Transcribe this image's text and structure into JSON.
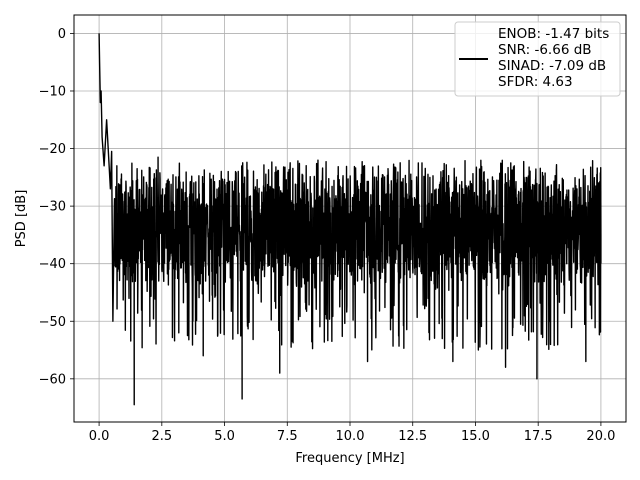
{
  "chart_data": {
    "type": "line",
    "title": "",
    "xlabel": "Frequency [MHz]",
    "ylabel": "PSD [dB]",
    "xlim": [
      -1.0,
      21.0
    ],
    "ylim": [
      -67.5,
      3.2
    ],
    "xticks": [
      0.0,
      2.5,
      5.0,
      7.5,
      10.0,
      12.5,
      15.0,
      17.5,
      20.0
    ],
    "xtick_labels": [
      "0.0",
      "2.5",
      "5.0",
      "7.5",
      "10.0",
      "12.5",
      "15.0",
      "17.5",
      "20.0"
    ],
    "yticks": [
      0,
      -10,
      -20,
      -30,
      -40,
      -50,
      -60
    ],
    "ytick_labels": [
      "0",
      "−10",
      "−20",
      "−30",
      "−40",
      "−50",
      "−60"
    ],
    "grid": true,
    "legend_position": "top-right",
    "series_color": "#000000",
    "series": [
      {
        "legend_lines": [
          "ENOB: -1.47 bits",
          "SNR: -6.66 dB",
          "SINAD: -7.09 dB",
          "SFDR: 4.63"
        ],
        "x_range": [
          0.0,
          20.0
        ],
        "peak": {
          "x": 0.0,
          "y": 0.0
        },
        "noise_floor_band": [
          -45,
          -22
        ],
        "points": [
          {
            "x": 0.0,
            "y": 0.0
          },
          {
            "x": 0.02,
            "y": -5.0
          },
          {
            "x": 0.05,
            "y": -12.0
          },
          {
            "x": 0.08,
            "y": -10.0
          },
          {
            "x": 0.12,
            "y": -18.0
          },
          {
            "x": 0.2,
            "y": -23.0
          },
          {
            "x": 0.3,
            "y": -15.0
          },
          {
            "x": 0.45,
            "y": -27.0
          },
          {
            "x": 0.5,
            "y": -20.5
          },
          {
            "x": 0.55,
            "y": -50.0
          },
          {
            "x": 1.4,
            "y": -64.5
          },
          {
            "x": 2.35,
            "y": -21.5
          },
          {
            "x": 4.15,
            "y": -56.0
          },
          {
            "x": 5.7,
            "y": -63.5
          },
          {
            "x": 7.2,
            "y": -59.0
          },
          {
            "x": 10.7,
            "y": -57.0
          },
          {
            "x": 14.1,
            "y": -57.0
          },
          {
            "x": 16.2,
            "y": -58.0
          },
          {
            "x": 17.45,
            "y": -60.0
          },
          {
            "x": 19.4,
            "y": -57.0
          },
          {
            "x": 20.0,
            "y": -35.0
          }
        ]
      }
    ]
  }
}
